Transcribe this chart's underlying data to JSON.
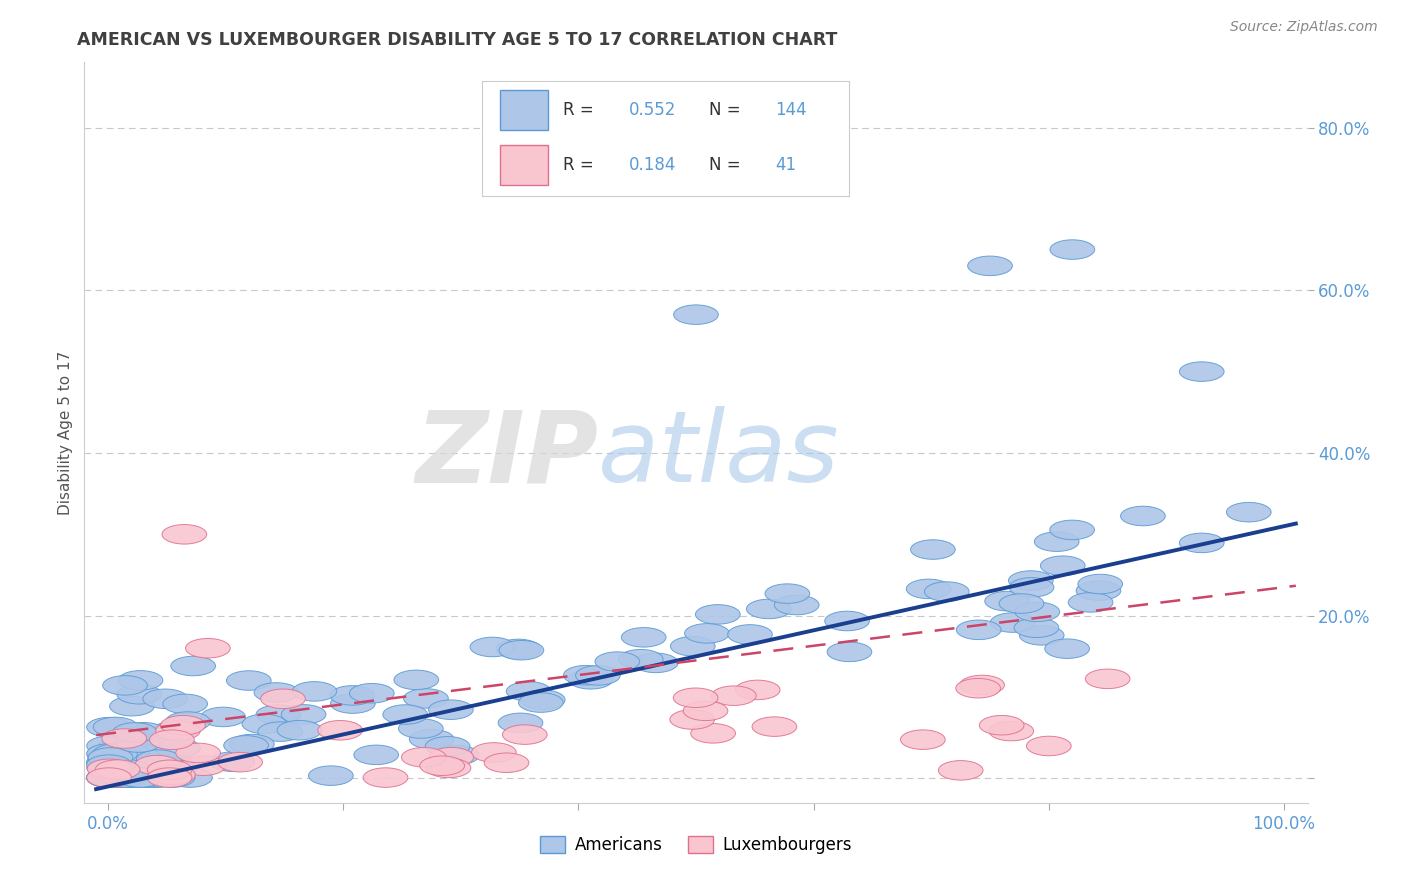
{
  "title": "AMERICAN VS LUXEMBOURGER DISABILITY AGE 5 TO 17 CORRELATION CHART",
  "source_text": "Source: ZipAtlas.com",
  "ylabel": "Disability Age 5 to 17",
  "xlim": [
    -0.02,
    1.02
  ],
  "ylim": [
    -0.03,
    0.88
  ],
  "R_american": 0.552,
  "N_american": 144,
  "R_luxembourger": 0.184,
  "N_luxembourger": 41,
  "american_color": "#aec6e8",
  "american_edge_color": "#5b9bd5",
  "luxembourger_color": "#f9c6d0",
  "luxembourger_edge_color": "#e07090",
  "american_line_color": "#1a3f8f",
  "luxembourger_line_color": "#cc4466",
  "watermark_zip": "ZIP",
  "watermark_atlas": "atlas",
  "background_color": "#ffffff",
  "grid_color": "#c8c8c8",
  "title_color": "#404040",
  "axis_label_color": "#555555",
  "tick_label_color": "#5b9bd5",
  "legend_text_color": "#5b9bd5",
  "legend_label_color": "#333333"
}
